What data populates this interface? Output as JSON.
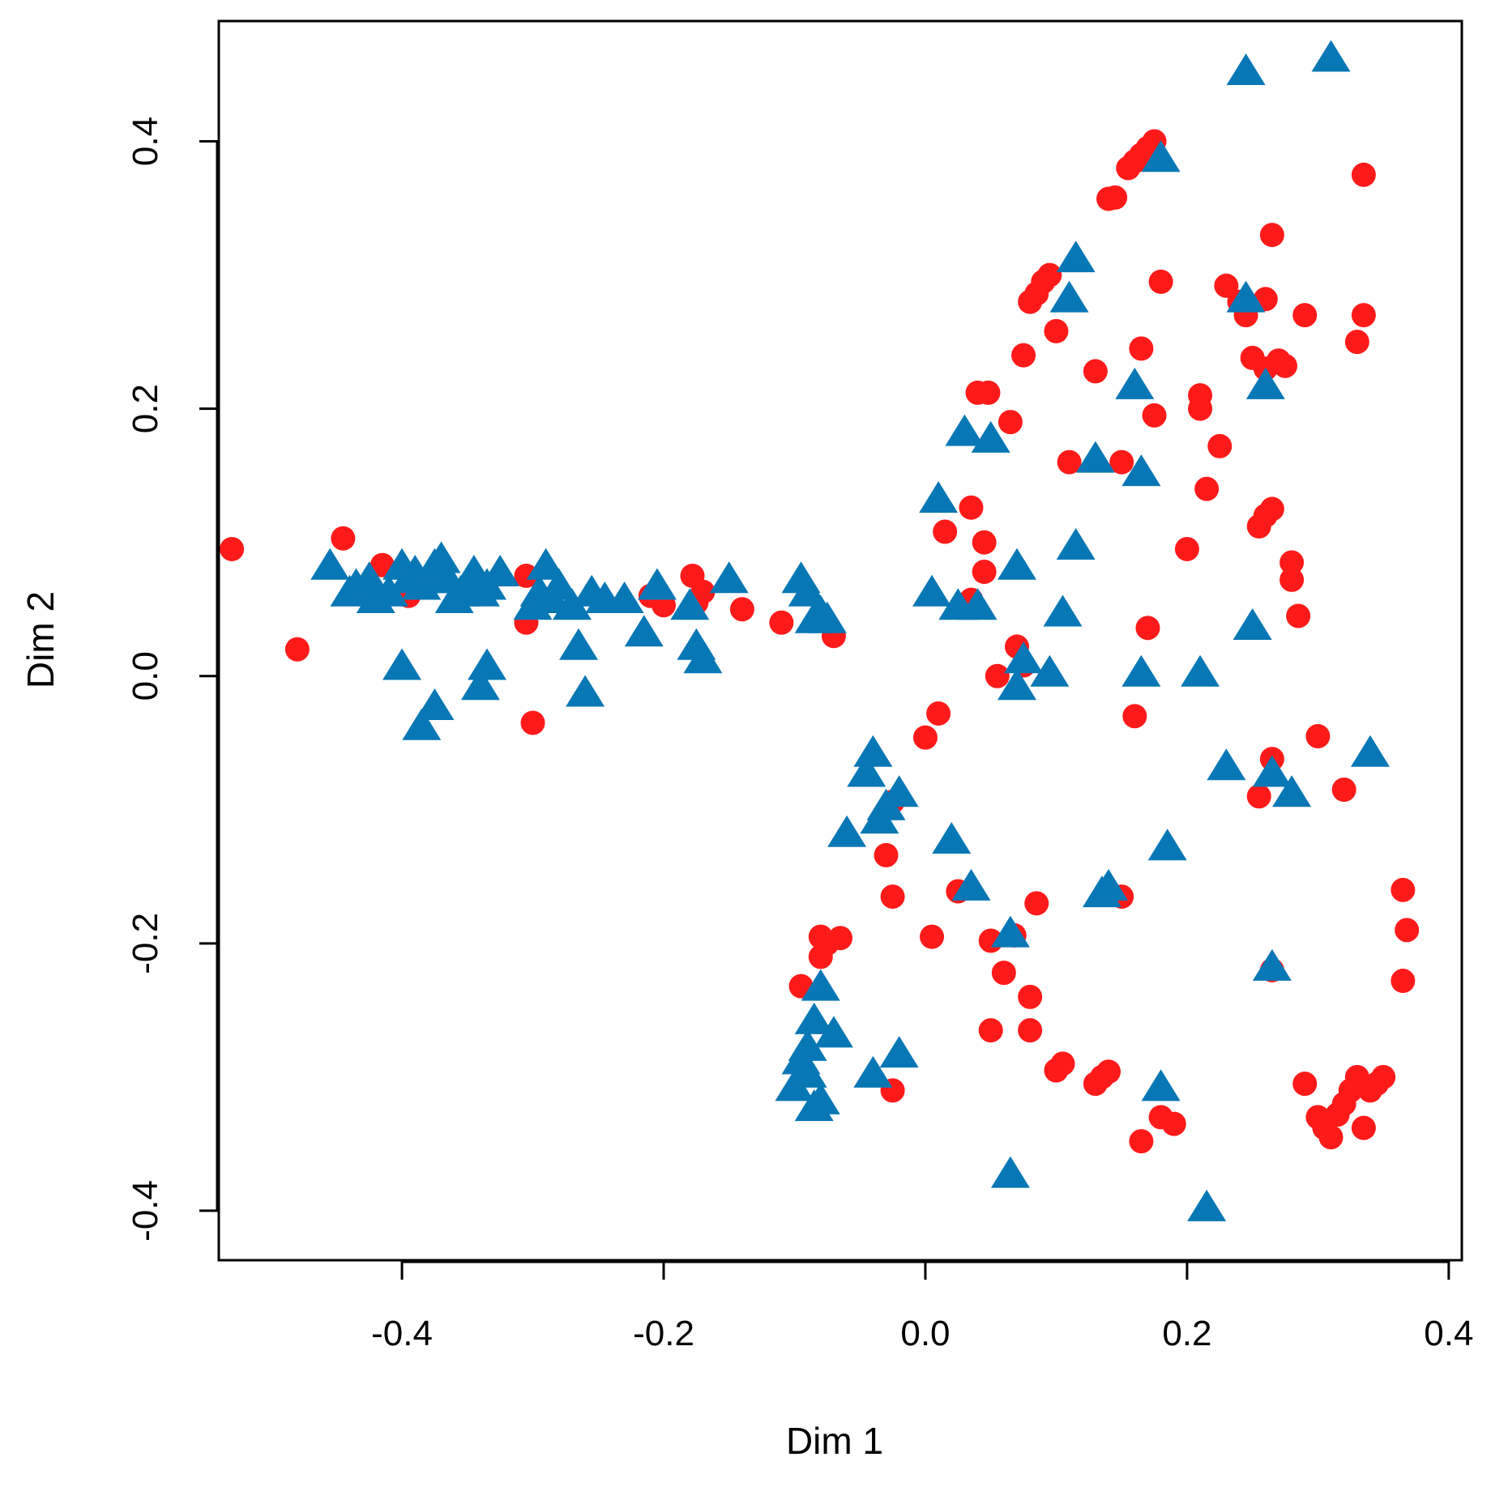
{
  "chart_data": {
    "type": "scatter",
    "xlabel": "Dim 1",
    "ylabel": "Dim 2",
    "xlim": [
      -0.54,
      0.41
    ],
    "ylim": [
      -0.437,
      0.49
    ],
    "xticks": [
      "-0.4",
      "-0.2",
      "0.0",
      "0.2",
      "0.4"
    ],
    "yticks": [
      "-0.4",
      "-0.2",
      "0.0",
      "0.2",
      "0.4"
    ],
    "grid": false,
    "legend": "none",
    "series": [
      {
        "marker": "circle",
        "color": "#ff1a1a",
        "points": [
          [
            -0.53,
            0.095
          ],
          [
            -0.48,
            0.02
          ],
          [
            -0.445,
            0.103
          ],
          [
            -0.415,
            0.083
          ],
          [
            -0.395,
            0.06
          ],
          [
            -0.305,
            0.075
          ],
          [
            -0.3,
            -0.035
          ],
          [
            -0.305,
            0.04
          ],
          [
            -0.21,
            0.06
          ],
          [
            -0.2,
            0.053
          ],
          [
            -0.178,
            0.075
          ],
          [
            -0.175,
            0.055
          ],
          [
            -0.17,
            0.063
          ],
          [
            -0.14,
            0.05
          ],
          [
            -0.11,
            0.04
          ],
          [
            -0.07,
            0.03
          ],
          [
            -0.075,
            -0.2
          ],
          [
            -0.08,
            -0.195
          ],
          [
            -0.08,
            -0.21
          ],
          [
            -0.095,
            -0.232
          ],
          [
            -0.065,
            -0.196
          ],
          [
            -0.03,
            -0.134
          ],
          [
            -0.025,
            -0.165
          ],
          [
            -0.025,
            -0.094
          ],
          [
            -0.025,
            -0.31
          ],
          [
            0.0,
            -0.046
          ],
          [
            0.005,
            -0.195
          ],
          [
            0.01,
            -0.028
          ],
          [
            0.015,
            0.108
          ],
          [
            0.025,
            -0.161
          ],
          [
            0.035,
            0.126
          ],
          [
            0.035,
            0.057
          ],
          [
            0.04,
            0.212
          ],
          [
            0.045,
            0.078
          ],
          [
            0.045,
            0.1
          ],
          [
            0.048,
            0.212
          ],
          [
            0.05,
            -0.198
          ],
          [
            0.05,
            -0.265
          ],
          [
            0.055,
            0.0
          ],
          [
            0.06,
            -0.222
          ],
          [
            0.065,
            0.19
          ],
          [
            0.068,
            -0.194
          ],
          [
            0.07,
            0.022
          ],
          [
            0.075,
            0.24
          ],
          [
            0.075,
            0.008
          ],
          [
            0.08,
            0.28
          ],
          [
            0.085,
            0.286
          ],
          [
            0.08,
            -0.24
          ],
          [
            0.08,
            -0.265
          ],
          [
            0.085,
            -0.17
          ],
          [
            0.09,
            0.295
          ],
          [
            0.095,
            0.3
          ],
          [
            0.1,
            0.258
          ],
          [
            0.1,
            -0.295
          ],
          [
            0.105,
            -0.29
          ],
          [
            0.11,
            0.16
          ],
          [
            0.13,
            0.228
          ],
          [
            0.13,
            -0.305
          ],
          [
            0.135,
            -0.3
          ],
          [
            0.14,
            -0.296
          ],
          [
            0.14,
            0.357
          ],
          [
            0.145,
            0.358
          ],
          [
            0.15,
            0.16
          ],
          [
            0.15,
            -0.165
          ],
          [
            0.155,
            0.38
          ],
          [
            0.16,
            0.385
          ],
          [
            0.165,
            0.245
          ],
          [
            0.165,
            0.39
          ],
          [
            0.17,
            0.395
          ],
          [
            0.175,
            0.4
          ],
          [
            0.18,
            0.295
          ],
          [
            0.175,
            0.195
          ],
          [
            0.17,
            0.036
          ],
          [
            0.16,
            -0.03
          ],
          [
            0.165,
            -0.348
          ],
          [
            0.18,
            -0.33
          ],
          [
            0.19,
            -0.335
          ],
          [
            0.2,
            0.095
          ],
          [
            0.21,
            0.21
          ],
          [
            0.21,
            0.2
          ],
          [
            0.215,
            0.14
          ],
          [
            0.225,
            0.172
          ],
          [
            0.23,
            0.292
          ],
          [
            0.24,
            0.28
          ],
          [
            0.245,
            0.27
          ],
          [
            0.25,
            0.238
          ],
          [
            0.255,
            0.112
          ],
          [
            0.26,
            0.12
          ],
          [
            0.265,
            0.125
          ],
          [
            0.265,
            0.33
          ],
          [
            0.26,
            0.282
          ],
          [
            0.26,
            0.23
          ],
          [
            0.265,
            -0.062
          ],
          [
            0.255,
            -0.09
          ],
          [
            0.265,
            -0.22
          ],
          [
            0.27,
            0.236
          ],
          [
            0.275,
            0.232
          ],
          [
            0.28,
            0.085
          ],
          [
            0.28,
            0.072
          ],
          [
            0.285,
            0.045
          ],
          [
            0.29,
            0.27
          ],
          [
            0.29,
            -0.305
          ],
          [
            0.3,
            -0.045
          ],
          [
            0.3,
            -0.33
          ],
          [
            0.305,
            -0.338
          ],
          [
            0.31,
            -0.345
          ],
          [
            0.315,
            -0.328
          ],
          [
            0.32,
            -0.32
          ],
          [
            0.32,
            -0.085
          ],
          [
            0.325,
            -0.31
          ],
          [
            0.33,
            -0.3
          ],
          [
            0.34,
            -0.31
          ],
          [
            0.345,
            -0.305
          ],
          [
            0.35,
            -0.3
          ],
          [
            0.33,
            0.25
          ],
          [
            0.335,
            0.27
          ],
          [
            0.335,
            0.375
          ],
          [
            0.335,
            -0.338
          ],
          [
            0.365,
            -0.16
          ],
          [
            0.368,
            -0.19
          ],
          [
            0.365,
            -0.228
          ]
        ]
      },
      {
        "marker": "triangle",
        "color": "#0877b5",
        "points": [
          [
            -0.455,
            0.08
          ],
          [
            -0.44,
            0.06
          ],
          [
            -0.435,
            0.065
          ],
          [
            -0.425,
            0.07
          ],
          [
            -0.42,
            0.055
          ],
          [
            -0.41,
            0.06
          ],
          [
            -0.4,
            0.08
          ],
          [
            -0.395,
            0.07
          ],
          [
            -0.39,
            0.075
          ],
          [
            -0.385,
            0.065
          ],
          [
            -0.38,
            0.07
          ],
          [
            -0.375,
            0.08
          ],
          [
            -0.37,
            0.085
          ],
          [
            -0.365,
            0.07
          ],
          [
            -0.36,
            0.055
          ],
          [
            -0.355,
            0.06
          ],
          [
            -0.35,
            0.065
          ],
          [
            -0.345,
            0.075
          ],
          [
            -0.34,
            0.06
          ],
          [
            -0.335,
            0.065
          ],
          [
            -0.325,
            0.075
          ],
          [
            -0.4,
            0.005
          ],
          [
            -0.385,
            -0.04
          ],
          [
            -0.375,
            -0.025
          ],
          [
            -0.34,
            -0.01
          ],
          [
            -0.335,
            0.005
          ],
          [
            -0.3,
            0.05
          ],
          [
            -0.295,
            0.06
          ],
          [
            -0.29,
            0.08
          ],
          [
            -0.285,
            0.055
          ],
          [
            -0.28,
            0.065
          ],
          [
            -0.27,
            0.05
          ],
          [
            -0.265,
            0.02
          ],
          [
            -0.26,
            -0.015
          ],
          [
            -0.255,
            0.06
          ],
          [
            -0.245,
            0.055
          ],
          [
            -0.23,
            0.055
          ],
          [
            -0.215,
            0.03
          ],
          [
            -0.205,
            0.065
          ],
          [
            -0.18,
            0.05
          ],
          [
            -0.175,
            0.02
          ],
          [
            -0.17,
            0.01
          ],
          [
            -0.15,
            0.07
          ],
          [
            -0.095,
            0.07
          ],
          [
            -0.09,
            0.06
          ],
          [
            -0.085,
            0.04
          ],
          [
            -0.08,
            0.045
          ],
          [
            -0.075,
            0.04
          ],
          [
            -0.08,
            -0.235
          ],
          [
            -0.085,
            -0.26
          ],
          [
            -0.09,
            -0.28
          ],
          [
            -0.095,
            -0.29
          ],
          [
            -0.1,
            -0.31
          ],
          [
            -0.09,
            -0.3
          ],
          [
            -0.085,
            -0.325
          ],
          [
            -0.08,
            -0.32
          ],
          [
            -0.07,
            -0.27
          ],
          [
            -0.06,
            -0.12
          ],
          [
            -0.045,
            -0.075
          ],
          [
            -0.04,
            -0.06
          ],
          [
            -0.035,
            -0.11
          ],
          [
            -0.03,
            -0.1
          ],
          [
            -0.02,
            -0.09
          ],
          [
            -0.02,
            -0.285
          ],
          [
            -0.04,
            -0.3
          ],
          [
            0.005,
            0.06
          ],
          [
            0.01,
            0.13
          ],
          [
            0.02,
            -0.125
          ],
          [
            0.025,
            0.05
          ],
          [
            0.03,
            0.18
          ],
          [
            0.035,
            -0.16
          ],
          [
            0.04,
            0.05
          ],
          [
            0.05,
            0.175
          ],
          [
            0.065,
            -0.195
          ],
          [
            0.07,
            0.08
          ],
          [
            0.075,
            0.01
          ],
          [
            0.07,
            -0.01
          ],
          [
            0.095,
            0.0
          ],
          [
            0.105,
            0.045
          ],
          [
            0.11,
            0.28
          ],
          [
            0.115,
            0.095
          ],
          [
            0.115,
            0.31
          ],
          [
            0.13,
            0.16
          ],
          [
            0.135,
            -0.165
          ],
          [
            0.14,
            -0.16
          ],
          [
            0.16,
            0.215
          ],
          [
            0.165,
            0.15
          ],
          [
            0.165,
            0.0
          ],
          [
            0.18,
            0.385
          ],
          [
            0.185,
            -0.13
          ],
          [
            0.18,
            -0.31
          ],
          [
            0.21,
            0.0
          ],
          [
            0.215,
            -0.4
          ],
          [
            0.23,
            -0.07
          ],
          [
            0.245,
            0.45
          ],
          [
            0.245,
            0.28
          ],
          [
            0.25,
            0.035
          ],
          [
            0.26,
            0.215
          ],
          [
            0.265,
            -0.075
          ],
          [
            0.265,
            -0.22
          ],
          [
            0.28,
            -0.09
          ],
          [
            0.31,
            0.46
          ],
          [
            0.34,
            -0.06
          ],
          [
            0.065,
            -0.375
          ]
        ]
      }
    ]
  }
}
